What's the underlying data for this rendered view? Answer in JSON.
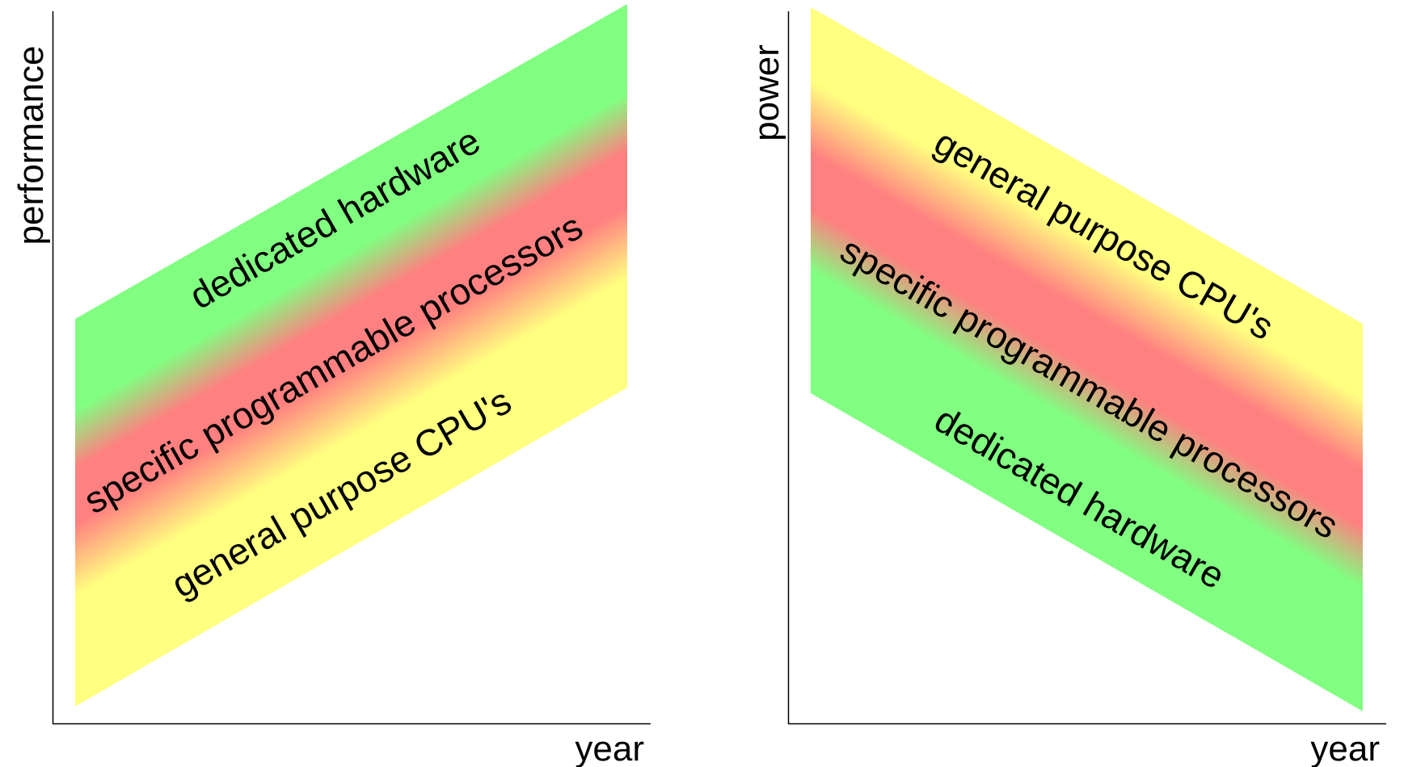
{
  "panels": [
    {
      "axes": {
        "x_label": "year",
        "y_label": "performance"
      },
      "trend": "increasing",
      "bands": [
        {
          "label": "dedicated hardware",
          "color": "#80ff80"
        },
        {
          "label": "specific programmable processors",
          "color": "#ff8080"
        },
        {
          "label": "general purpose CPU's",
          "color": "#ffff80"
        }
      ]
    },
    {
      "axes": {
        "x_label": "year",
        "y_label": "power"
      },
      "trend": "decreasing",
      "bands": [
        {
          "label": "general purpose CPU's",
          "color": "#ffff80"
        },
        {
          "label": "specific programmable processors",
          "color": "#ff8080"
        },
        {
          "label": "dedicated hardware",
          "color": "#80ff80"
        }
      ]
    }
  ]
}
